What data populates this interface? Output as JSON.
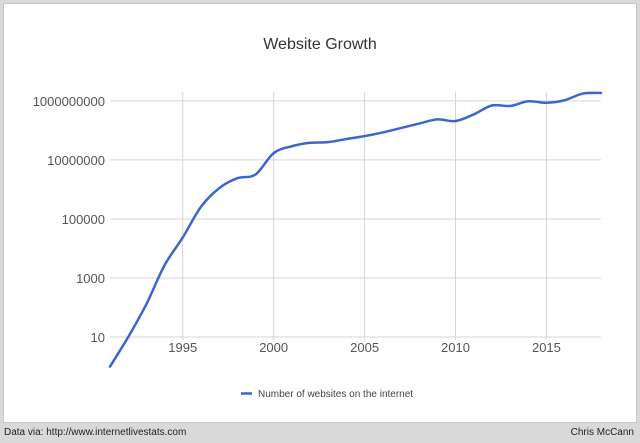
{
  "chart_data": {
    "type": "line",
    "title": "Website Growth",
    "xlabel": "",
    "ylabel": "",
    "y_scale": "log",
    "xlim": [
      1991,
      2018
    ],
    "ylim_exponent": [
      0.9,
      9.3
    ],
    "x_ticks": [
      1995,
      2000,
      2005,
      2010,
      2015
    ],
    "x_tick_labels": [
      "1995",
      "2000",
      "2005",
      "2010",
      "2015"
    ],
    "y_ticks": [
      10,
      1000,
      100000,
      10000000,
      1000000000
    ],
    "y_tick_labels": [
      "10",
      "1000",
      "100000",
      "10000000",
      "1000000000"
    ],
    "grid": true,
    "legend_position": "bottom",
    "series": [
      {
        "name": "Number of websites on the internet",
        "color": "#3c66cc",
        "x": [
          1991,
          1992,
          1993,
          1994,
          1995,
          1996,
          1997,
          1998,
          1999,
          2000,
          2001,
          2002,
          2003,
          2004,
          2005,
          2006,
          2007,
          2008,
          2009,
          2010,
          2011,
          2012,
          2013,
          2014,
          2015,
          2016,
          2017,
          2018
        ],
        "y": [
          1,
          10,
          130,
          2700,
          23500,
          257000,
          1100000,
          2400000,
          3200000,
          17000000,
          29000000,
          38000000,
          40000000,
          51000000,
          64000000,
          85000000,
          120000000,
          170000000,
          235000000,
          207000000,
          347000000,
          697000000,
          672000000,
          968000000,
          863000000,
          1050000000,
          1770000000,
          1850000000
        ]
      }
    ]
  },
  "footer": {
    "source": "Data via: http://www.internetlivestats.com",
    "author": "Chris McCann"
  }
}
